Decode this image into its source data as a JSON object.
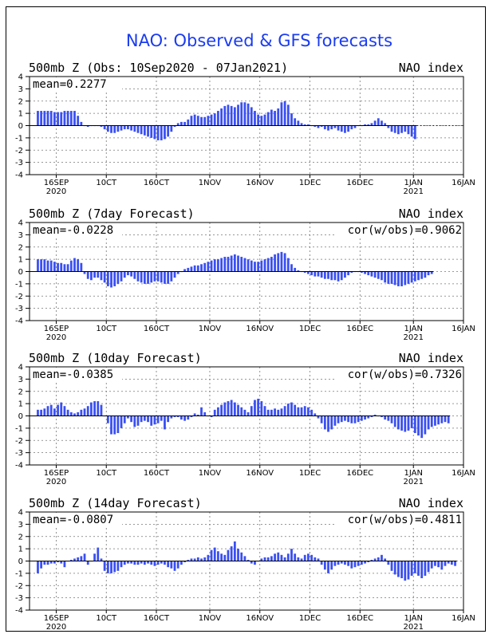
{
  "chart_data": {
    "title": "NAO: Observed & GFS forecasts",
    "title_color": "#1a3cf0",
    "bar_color": "#3a4ff0",
    "type": "bar",
    "x_ticks": [
      "16SEP",
      "10CT",
      "160CT",
      "1NOV",
      "16NOV",
      "1DEC",
      "16DEC",
      "1JAN",
      "16JAN"
    ],
    "x_year_labels": {
      "16SEP": "2020",
      "1JAN": "2021"
    },
    "y_ticks": [
      "4",
      "3",
      "2",
      "1",
      "0",
      "-1",
      "-2",
      "-3",
      "-4"
    ],
    "ylim": [
      -4,
      4
    ],
    "grid": true,
    "panels": [
      {
        "label": "500mb  Z (Obs: 10Sep2020 - 07Jan2021)",
        "index_label": "NAO index",
        "mean_text": "mean=0.2277",
        "corr_text": "",
        "values": [
          1.2,
          1.2,
          1.2,
          1.2,
          1.2,
          1.1,
          1.1,
          1.1,
          1.2,
          1.2,
          1.2,
          1.2,
          0.8,
          0.3,
          0.0,
          -0.1,
          0.0,
          0.0,
          0.0,
          -0.1,
          -0.3,
          -0.5,
          -0.6,
          -0.6,
          -0.5,
          -0.4,
          -0.3,
          -0.3,
          -0.4,
          -0.5,
          -0.6,
          -0.7,
          -0.8,
          -0.9,
          -1.0,
          -1.1,
          -1.2,
          -1.2,
          -1.1,
          -0.9,
          -0.5,
          -0.1,
          0.2,
          0.3,
          0.3,
          0.5,
          0.8,
          0.9,
          0.8,
          0.7,
          0.7,
          0.8,
          0.9,
          1.0,
          1.2,
          1.4,
          1.6,
          1.7,
          1.6,
          1.5,
          1.7,
          1.9,
          1.9,
          1.8,
          1.5,
          1.2,
          0.9,
          0.8,
          0.9,
          1.1,
          1.3,
          1.2,
          1.4,
          1.9,
          2.0,
          1.7,
          1.0,
          0.6,
          0.4,
          0.2,
          0.1,
          0.1,
          0.0,
          -0.1,
          -0.2,
          -0.1,
          -0.3,
          -0.4,
          -0.3,
          -0.2,
          -0.4,
          -0.5,
          -0.6,
          -0.5,
          -0.3,
          -0.2,
          0.0,
          0.0,
          0.1,
          0.1,
          0.2,
          0.4,
          0.6,
          0.4,
          0.2,
          -0.2,
          -0.5,
          -0.6,
          -0.7,
          -0.6,
          -0.5,
          -0.7,
          -0.9,
          -1.1
        ]
      },
      {
        "label": "500mb  Z (7day Forecast)",
        "index_label": "NAO index",
        "mean_text": "mean=-0.0228",
        "corr_text": "cor(w/obs)=0.9062",
        "values": [
          1.0,
          1.0,
          1.0,
          0.9,
          0.9,
          0.8,
          0.7,
          0.7,
          0.6,
          0.6,
          0.9,
          1.1,
          1.0,
          0.7,
          -0.2,
          -0.6,
          -0.7,
          -0.5,
          -0.5,
          -0.7,
          -0.9,
          -1.2,
          -1.3,
          -1.2,
          -1.0,
          -0.8,
          -0.5,
          -0.3,
          -0.4,
          -0.6,
          -0.8,
          -0.9,
          -1.0,
          -1.0,
          -0.9,
          -0.8,
          -0.8,
          -0.9,
          -1.0,
          -1.0,
          -0.8,
          -0.5,
          -0.2,
          0.0,
          0.2,
          0.3,
          0.4,
          0.5,
          0.5,
          0.6,
          0.7,
          0.8,
          0.9,
          1.0,
          1.0,
          1.1,
          1.2,
          1.2,
          1.3,
          1.4,
          1.3,
          1.2,
          1.1,
          1.0,
          0.9,
          0.8,
          0.8,
          0.9,
          1.0,
          1.1,
          1.2,
          1.4,
          1.5,
          1.6,
          1.5,
          1.1,
          0.6,
          0.3,
          0.1,
          0.0,
          -0.1,
          -0.2,
          -0.3,
          -0.4,
          -0.4,
          -0.5,
          -0.6,
          -0.6,
          -0.7,
          -0.7,
          -0.8,
          -0.7,
          -0.5,
          -0.3,
          -0.1,
          0.0,
          0.0,
          -0.1,
          -0.2,
          -0.3,
          -0.4,
          -0.5,
          -0.6,
          -0.7,
          -0.9,
          -1.0,
          -1.0,
          -1.1,
          -1.2,
          -1.2,
          -1.1,
          -1.0,
          -0.9,
          -0.8,
          -0.7,
          -0.6,
          -0.5,
          -0.3,
          -0.2
        ]
      },
      {
        "label": "500mb  Z (10day Forecast)",
        "index_label": "NAO index",
        "mean_text": "mean=-0.0385",
        "corr_text": "cor(w/obs)=0.7326",
        "values": [
          0.5,
          0.5,
          0.6,
          0.8,
          0.9,
          0.6,
          0.9,
          1.1,
          0.8,
          0.5,
          0.3,
          0.2,
          0.3,
          0.5,
          0.6,
          0.8,
          1.1,
          1.2,
          1.2,
          0.9,
          0.0,
          -0.6,
          -1.5,
          -1.5,
          -1.4,
          -1.0,
          -0.6,
          -0.2,
          -0.5,
          -0.9,
          -0.8,
          -0.5,
          -0.4,
          -0.5,
          -0.8,
          -0.7,
          -0.6,
          -0.4,
          -1.1,
          -0.5,
          -0.2,
          -0.1,
          -0.1,
          -0.3,
          -0.4,
          -0.3,
          -0.1,
          0.2,
          0.1,
          0.7,
          0.3,
          0.0,
          -0.1,
          0.5,
          0.7,
          0.9,
          1.1,
          1.2,
          1.3,
          1.1,
          0.9,
          0.7,
          0.5,
          0.3,
          0.8,
          1.3,
          1.4,
          1.2,
          0.8,
          0.5,
          0.5,
          0.6,
          0.5,
          0.6,
          0.8,
          1.0,
          1.1,
          0.9,
          0.7,
          0.7,
          0.8,
          0.7,
          0.5,
          0.2,
          -0.2,
          -0.6,
          -1.1,
          -1.3,
          -1.1,
          -0.8,
          -0.6,
          -0.5,
          -0.4,
          -0.5,
          -0.6,
          -0.6,
          -0.5,
          -0.4,
          -0.3,
          -0.2,
          -0.1,
          0.1,
          0.0,
          -0.1,
          -0.3,
          -0.4,
          -0.6,
          -0.9,
          -1.1,
          -1.2,
          -1.3,
          -1.2,
          -1.0,
          -1.4,
          -1.6,
          -1.8,
          -1.5,
          -1.1,
          -0.9,
          -0.8,
          -0.7,
          -0.6,
          -0.5,
          -0.6
        ]
      },
      {
        "label": "500mb  Z (14day Forecast)",
        "index_label": "NAO index",
        "mean_text": "mean=-0.0807",
        "corr_text": "cor(w/obs)=0.4811",
        "values": [
          -1.0,
          -0.6,
          -0.3,
          -0.3,
          -0.2,
          -0.2,
          -0.1,
          -0.2,
          -0.5,
          0.0,
          0.1,
          0.2,
          0.3,
          0.4,
          0.6,
          -0.3,
          0.0,
          0.6,
          1.1,
          0.2,
          -0.8,
          -1.0,
          -1.0,
          -0.9,
          -0.8,
          -0.5,
          -0.3,
          -0.2,
          -0.2,
          -0.3,
          -0.3,
          -0.2,
          -0.3,
          -0.2,
          -0.3,
          -0.4,
          -0.3,
          -0.2,
          -0.3,
          -0.5,
          -0.6,
          -0.8,
          -0.6,
          -0.3,
          -0.1,
          0.1,
          0.2,
          0.2,
          0.3,
          0.2,
          0.3,
          0.5,
          0.9,
          1.1,
          0.8,
          0.6,
          0.5,
          0.9,
          1.2,
          1.6,
          1.0,
          0.7,
          0.4,
          0.1,
          -0.2,
          -0.3,
          0.0,
          0.2,
          0.3,
          0.3,
          0.4,
          0.6,
          0.7,
          0.5,
          0.3,
          0.6,
          1.0,
          0.6,
          0.3,
          0.2,
          0.5,
          0.6,
          0.5,
          0.3,
          0.2,
          -0.3,
          -0.7,
          -1.0,
          -0.7,
          -0.4,
          -0.3,
          -0.2,
          -0.3,
          -0.4,
          -0.6,
          -0.5,
          -0.4,
          -0.3,
          -0.2,
          -0.1,
          0.1,
          0.2,
          0.3,
          0.5,
          0.2,
          -0.3,
          -0.8,
          -1.1,
          -1.3,
          -1.4,
          -1.6,
          -1.5,
          -1.2,
          -1.0,
          -1.2,
          -1.4,
          -1.2,
          -0.9,
          -0.6,
          -0.4,
          -0.5,
          -0.7,
          -0.4,
          -0.2,
          -0.3,
          -0.4
        ]
      }
    ]
  }
}
